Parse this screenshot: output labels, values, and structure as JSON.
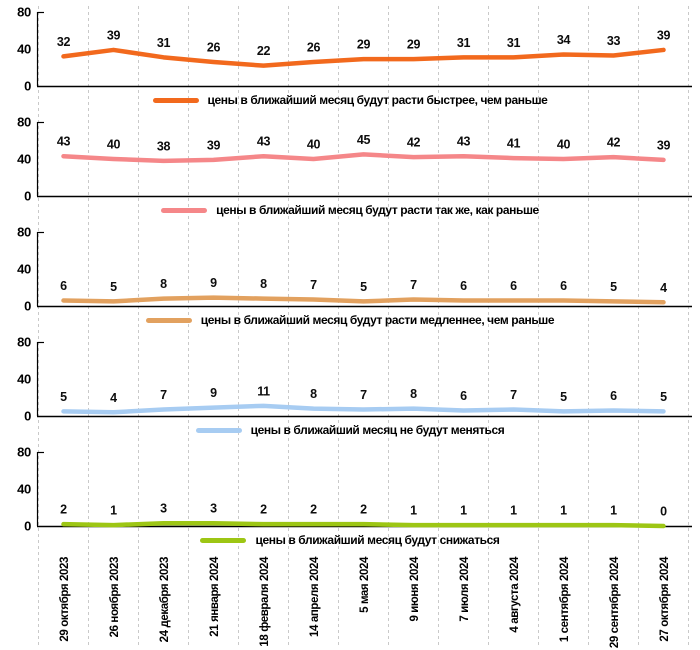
{
  "chart_data": {
    "type": "line",
    "title": "",
    "xlabel": "",
    "ylabel": "",
    "ylim": [
      0,
      80
    ],
    "yticks": [
      80,
      40,
      0
    ],
    "grid": "vertical-dashed",
    "legend_position": "below-each-panel",
    "layout": "small-multiples-stacked",
    "x": [
      "29 октября 2023",
      "26 ноября 2023",
      "24 декабря 2023",
      "21 января 2024",
      "18 февраля 2024",
      "14 апреля 2024",
      "5 мая 2024",
      "9 июня 2024",
      "7 июля 2024",
      "4 августа 2024",
      "1 сентября 2024",
      "29 сентября 2024",
      "27 октября 2024"
    ],
    "series": [
      {
        "name": "цены в ближайший месяц будут расти быстрее, чем раньше",
        "color": "#f2691d",
        "values": [
          32,
          39,
          31,
          26,
          22,
          26,
          29,
          29,
          31,
          31,
          34,
          33,
          39
        ]
      },
      {
        "name": "цены в ближайший месяц будут расти так же, как раньше",
        "color": "#f58789",
        "values": [
          43,
          40,
          38,
          39,
          43,
          40,
          45,
          42,
          43,
          41,
          40,
          42,
          39
        ]
      },
      {
        "name": "цены в ближайший месяц будут расти медленнее, чем раньше",
        "color": "#e2a15f",
        "values": [
          6,
          5,
          8,
          9,
          8,
          7,
          5,
          7,
          6,
          6,
          6,
          5,
          4
        ]
      },
      {
        "name": "цены в ближайший месяц не будут меняться",
        "color": "#a7ccf2",
        "values": [
          5,
          4,
          7,
          9,
          11,
          8,
          7,
          8,
          6,
          7,
          5,
          6,
          5
        ]
      },
      {
        "name": "цены в ближайший месяц будут снижаться",
        "color": "#9dc614",
        "values": [
          2,
          1,
          3,
          3,
          2,
          2,
          2,
          1,
          1,
          1,
          1,
          1,
          0
        ]
      }
    ],
    "colors": {
      "grid": "#c9c9c9",
      "axis": "#000000",
      "text": "#000000"
    }
  }
}
